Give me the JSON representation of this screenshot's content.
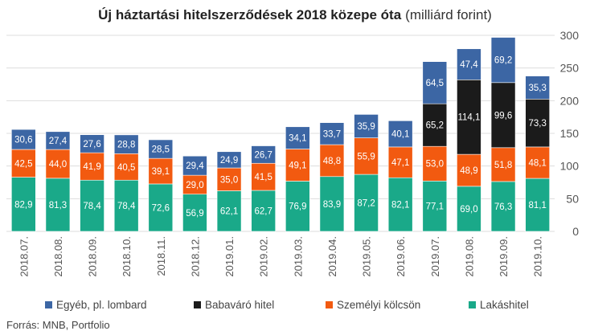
{
  "chart_data": {
    "type": "bar",
    "stacked": true,
    "title": "Új háztartási hitelszerződések 2018 közepe óta",
    "title_unit": "(milliárd forint)",
    "source": "Forrás: MNB, Portfolio",
    "categories": [
      "2018.07.",
      "2018.08.",
      "2018.09.",
      "2018.10.",
      "2018.11.",
      "2018.12.",
      "2019.01.",
      "2019.02.",
      "2019.03.",
      "2019.04.",
      "2019.05.",
      "2019.06.",
      "2019.07.",
      "2019.08.",
      "2019.09.",
      "2019.10."
    ],
    "ylim": [
      0,
      300
    ],
    "yticks": [
      0,
      50,
      100,
      150,
      200,
      250,
      300
    ],
    "grid": true,
    "legend_position": "bottom",
    "series": [
      {
        "name": "Lakáshitel",
        "color": "#1aa989",
        "values": [
          82.9,
          81.3,
          78.4,
          78.4,
          72.6,
          56.9,
          62.1,
          62.7,
          76.9,
          83.9,
          87.2,
          82.1,
          77.1,
          69.0,
          76.3,
          81.1
        ],
        "labels": [
          "82,9",
          "81,3",
          "78,4",
          "78,4",
          "72,6",
          "56,9",
          "62,1",
          "62,7",
          "76,9",
          "83,9",
          "87,2",
          "82,1",
          "77,1",
          "69,0",
          "76,3",
          "81,1"
        ]
      },
      {
        "name": "Személyi kölcsön",
        "color": "#f25a10",
        "values": [
          42.5,
          44.0,
          41.9,
          40.5,
          39.1,
          29.0,
          35.0,
          41.5,
          49.1,
          48.8,
          55.9,
          47.1,
          53.0,
          48.9,
          51.8,
          48.1
        ],
        "labels": [
          "42,5",
          "44,0",
          "41,9",
          "40,5",
          "39,1",
          "29,0",
          "35,0",
          "41,5",
          "49,1",
          "48,8",
          "55,9",
          "47,1",
          "53,0",
          "48,9",
          "51,8",
          "48,1"
        ]
      },
      {
        "name": "Babaváró hitel",
        "color": "#1b1b1b",
        "values": [
          0,
          0,
          0,
          0,
          0,
          0,
          0,
          0,
          0,
          0,
          0,
          0,
          65.2,
          114.1,
          99.6,
          73.3
        ],
        "labels": [
          "",
          "",
          "",
          "",
          "",
          "",
          "",
          "",
          "",
          "",
          "",
          "",
          "65,2",
          "114,1",
          "99,6",
          "73,3"
        ]
      },
      {
        "name": "Egyéb, pl. lombard",
        "color": "#3c66a4",
        "values": [
          30.6,
          27.4,
          27.6,
          28.8,
          28.5,
          29.4,
          24.9,
          26.7,
          34.1,
          33.7,
          35.9,
          40.1,
          64.5,
          47.4,
          69.2,
          35.3
        ],
        "labels": [
          "30,6",
          "27,4",
          "27,6",
          "28,8",
          "28,5",
          "29,4",
          "24,9",
          "26,7",
          "34,1",
          "33,7",
          "35,9",
          "40,1",
          "64,5",
          "47,4",
          "69,2",
          "35,3"
        ]
      }
    ],
    "legend": [
      {
        "name": "Egyéb, pl. lombard",
        "color": "#3c66a4"
      },
      {
        "name": "Babaváró hitel",
        "color": "#1b1b1b"
      },
      {
        "name": "Személyi kölcsön",
        "color": "#f25a10"
      },
      {
        "name": "Lakáshitel",
        "color": "#1aa989"
      }
    ]
  }
}
